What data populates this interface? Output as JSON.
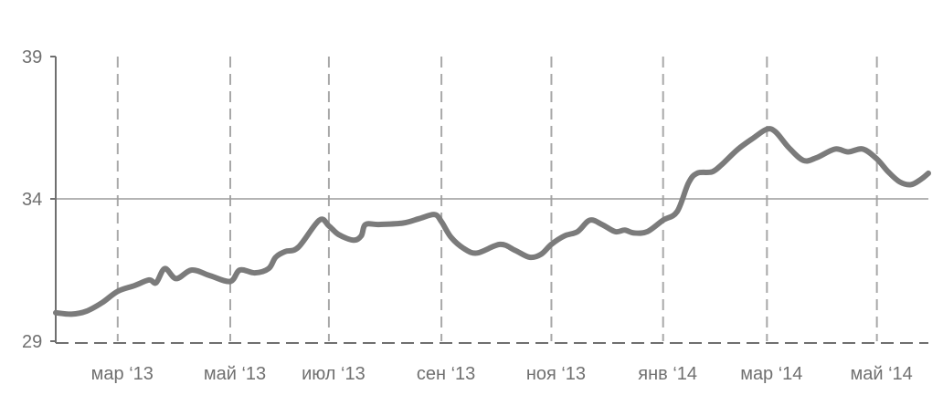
{
  "chart_data": {
    "type": "line",
    "title": "",
    "xlabel": "",
    "ylabel": "",
    "ylim": [
      29,
      39
    ],
    "y_ticks": [
      39,
      34,
      29
    ],
    "y_tick_labels": [
      "39",
      "34",
      "29"
    ],
    "xlim": [
      0,
      100
    ],
    "x_ticks": [
      {
        "label": "мар ‘13",
        "x": 7.1
      },
      {
        "label": "май ‘13",
        "x": 20.0
      },
      {
        "label": "июл ‘13",
        "x": 31.3
      },
      {
        "label": "сен ‘13",
        "x": 44.2
      },
      {
        "label": "ноя ‘13",
        "x": 56.8
      },
      {
        "label": "янв ‘14",
        "x": 69.6
      },
      {
        "label": "мар ‘14",
        "x": 81.5
      },
      {
        "label": "май ‘14",
        "x": 94.1
      }
    ],
    "reference_line_y": 34,
    "grid": {
      "vertical_dashed": true
    },
    "colors": {
      "line": "#7b7b7b",
      "axis": "#6f6f6f",
      "grid": "#a8a8a8",
      "reference": "#9c9c9c",
      "text": "#707070"
    },
    "series": [
      {
        "points": [
          [
            0.0,
            30.0
          ],
          [
            1.8,
            29.95
          ],
          [
            3.5,
            30.05
          ],
          [
            5.3,
            30.35
          ],
          [
            7.1,
            30.75
          ],
          [
            9.0,
            30.95
          ],
          [
            10.7,
            31.15
          ],
          [
            11.5,
            31.05
          ],
          [
            12.5,
            31.55
          ],
          [
            13.8,
            31.2
          ],
          [
            15.6,
            31.5
          ],
          [
            17.7,
            31.3
          ],
          [
            20.0,
            31.1
          ],
          [
            21.1,
            31.5
          ],
          [
            22.8,
            31.4
          ],
          [
            24.4,
            31.55
          ],
          [
            25.2,
            31.95
          ],
          [
            26.3,
            32.15
          ],
          [
            27.8,
            32.3
          ],
          [
            30.2,
            33.25
          ],
          [
            31.3,
            33.05
          ],
          [
            32.4,
            32.75
          ],
          [
            34.1,
            32.55
          ],
          [
            35.0,
            32.7
          ],
          [
            35.5,
            33.1
          ],
          [
            37.0,
            33.1
          ],
          [
            39.8,
            33.15
          ],
          [
            41.6,
            33.3
          ],
          [
            43.4,
            33.45
          ],
          [
            44.2,
            33.2
          ],
          [
            45.3,
            32.65
          ],
          [
            46.8,
            32.25
          ],
          [
            48.3,
            32.1
          ],
          [
            50.9,
            32.4
          ],
          [
            52.6,
            32.2
          ],
          [
            54.3,
            31.95
          ],
          [
            55.6,
            32.05
          ],
          [
            56.8,
            32.4
          ],
          [
            58.3,
            32.7
          ],
          [
            59.8,
            32.85
          ],
          [
            61.2,
            33.25
          ],
          [
            62.6,
            33.1
          ],
          [
            64.1,
            32.85
          ],
          [
            65.2,
            32.9
          ],
          [
            66.3,
            32.8
          ],
          [
            67.8,
            32.85
          ],
          [
            69.6,
            33.25
          ],
          [
            71.2,
            33.55
          ],
          [
            72.5,
            34.55
          ],
          [
            73.5,
            34.9
          ],
          [
            75.2,
            34.95
          ],
          [
            76.3,
            35.2
          ],
          [
            78.2,
            35.75
          ],
          [
            80.0,
            36.15
          ],
          [
            81.5,
            36.45
          ],
          [
            82.5,
            36.35
          ],
          [
            84.0,
            35.8
          ],
          [
            85.7,
            35.35
          ],
          [
            87.2,
            35.45
          ],
          [
            89.3,
            35.75
          ],
          [
            90.8,
            35.65
          ],
          [
            92.5,
            35.75
          ],
          [
            94.1,
            35.4
          ],
          [
            95.4,
            34.95
          ],
          [
            96.7,
            34.6
          ],
          [
            98.0,
            34.5
          ],
          [
            99.2,
            34.7
          ],
          [
            100.0,
            34.9
          ]
        ]
      }
    ]
  }
}
